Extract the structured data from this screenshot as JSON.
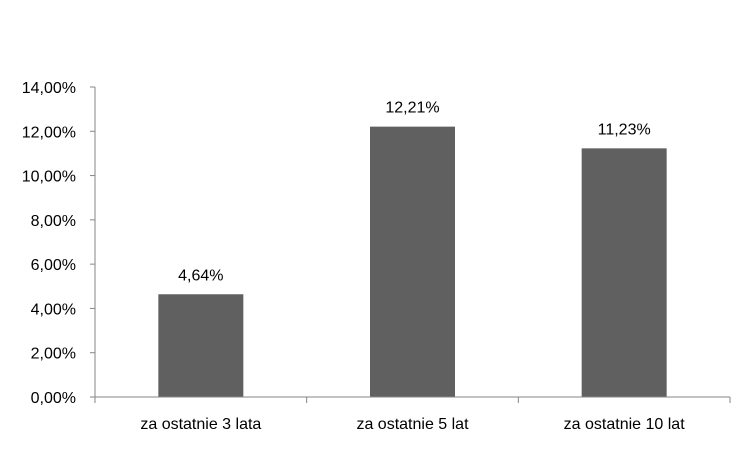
{
  "chart_data": {
    "type": "bar",
    "categories": [
      "za ostatnie 3 lata",
      "za ostatnie 5 lat",
      "za ostatnie 10 lat"
    ],
    "values": [
      4.64,
      12.21,
      11.23
    ],
    "value_labels": [
      "4,64%",
      "12,21%",
      "11,23%"
    ],
    "y_ticks": [
      0,
      2,
      4,
      6,
      8,
      10,
      12,
      14
    ],
    "y_tick_labels": [
      "0,00%",
      "2,00%",
      "4,00%",
      "6,00%",
      "8,00%",
      "10,00%",
      "12,00%",
      "14,00%"
    ],
    "ylim": [
      0,
      14
    ],
    "grid": false,
    "legend": "none",
    "bar_color": "#606060",
    "axis_color": "#868686"
  }
}
